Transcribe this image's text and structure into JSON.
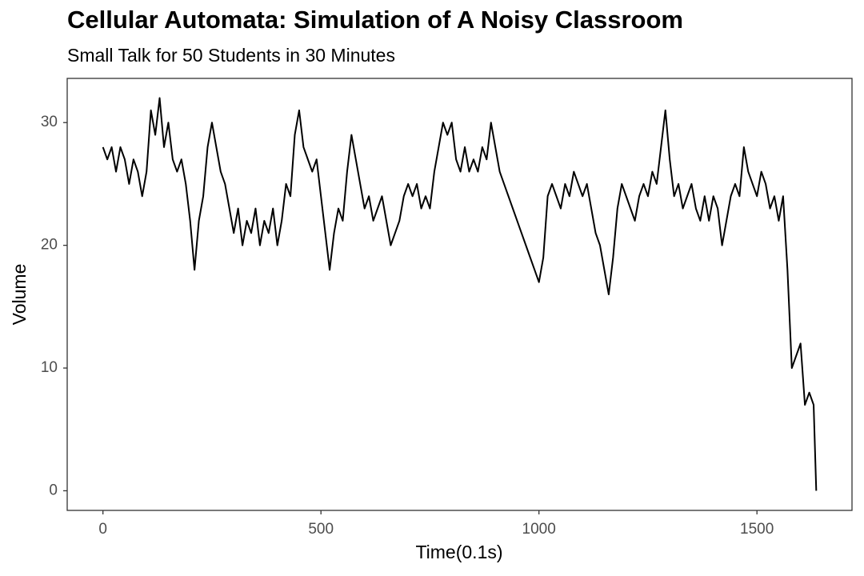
{
  "chart_data": {
    "type": "line",
    "title": "Cellular Automata: Simulation of A Noisy Classroom",
    "subtitle": "Small Talk for 50 Students in 30 Minutes",
    "x_label": "Time(0.1s)",
    "y_label": "Volume",
    "x": [
      0,
      10,
      20,
      30,
      40,
      50,
      60,
      70,
      80,
      90,
      100,
      110,
      120,
      130,
      140,
      150,
      160,
      170,
      180,
      190,
      200,
      210,
      220,
      230,
      240,
      250,
      260,
      270,
      280,
      290,
      300,
      310,
      320,
      330,
      340,
      350,
      360,
      370,
      380,
      390,
      400,
      410,
      420,
      430,
      440,
      450,
      460,
      470,
      480,
      490,
      500,
      510,
      520,
      530,
      540,
      550,
      560,
      570,
      580,
      590,
      600,
      610,
      620,
      630,
      640,
      650,
      660,
      670,
      680,
      690,
      700,
      710,
      720,
      730,
      740,
      750,
      760,
      770,
      780,
      790,
      800,
      810,
      820,
      830,
      840,
      850,
      860,
      870,
      880,
      890,
      900,
      910,
      920,
      930,
      940,
      950,
      960,
      970,
      980,
      990,
      1000,
      1010,
      1020,
      1030,
      1040,
      1050,
      1060,
      1070,
      1080,
      1090,
      1100,
      1110,
      1120,
      1130,
      1140,
      1150,
      1160,
      1170,
      1180,
      1190,
      1200,
      1210,
      1220,
      1230,
      1240,
      1250,
      1260,
      1270,
      1280,
      1290,
      1300,
      1310,
      1320,
      1330,
      1340,
      1350,
      1360,
      1370,
      1380,
      1390,
      1400,
      1410,
      1420,
      1430,
      1440,
      1450,
      1460,
      1470,
      1480,
      1490,
      1500,
      1510,
      1520,
      1530,
      1540,
      1550,
      1560,
      1570,
      1580,
      1590,
      1600,
      1610,
      1620,
      1630,
      1636
    ],
    "series": [
      {
        "color": "#000000",
        "values": [
          28,
          27,
          28,
          26,
          28,
          27,
          25,
          27,
          26,
          24,
          26,
          31,
          29,
          32,
          28,
          30,
          27,
          26,
          27,
          25,
          22,
          18,
          22,
          24,
          28,
          30,
          28,
          26,
          25,
          23,
          21,
          23,
          20,
          22,
          21,
          23,
          20,
          22,
          21,
          23,
          20,
          22,
          25,
          24,
          29,
          31,
          28,
          27,
          26,
          27,
          24,
          21,
          18,
          21,
          23,
          22,
          26,
          29,
          27,
          25,
          23,
          24,
          22,
          23,
          24,
          22,
          20,
          21,
          22,
          24,
          25,
          24,
          25,
          23,
          24,
          23,
          26,
          28,
          30,
          29,
          30,
          27,
          26,
          28,
          26,
          27,
          26,
          28,
          27,
          30,
          28,
          26,
          25,
          24,
          23,
          22,
          21,
          20,
          19,
          18,
          17,
          19,
          24,
          25,
          24,
          23,
          25,
          24,
          26,
          25,
          24,
          25,
          23,
          21,
          20,
          18,
          16,
          19,
          23,
          25,
          24,
          23,
          22,
          24,
          25,
          24,
          26,
          25,
          28,
          31,
          27,
          24,
          25,
          23,
          24,
          25,
          23,
          22,
          24,
          22,
          24,
          23,
          20,
          22,
          24,
          25,
          24,
          28,
          26,
          25,
          24,
          26,
          25,
          23,
          24,
          22,
          24,
          18,
          10,
          11,
          12,
          7,
          8,
          7,
          0
        ]
      }
    ],
    "xlim": [
      -82,
      1718
    ],
    "ylim": [
      -1.6,
      33.6
    ],
    "xticks": [
      0,
      500,
      1000,
      1500
    ],
    "yticks": [
      0,
      10,
      20,
      30
    ],
    "grid": false
  }
}
